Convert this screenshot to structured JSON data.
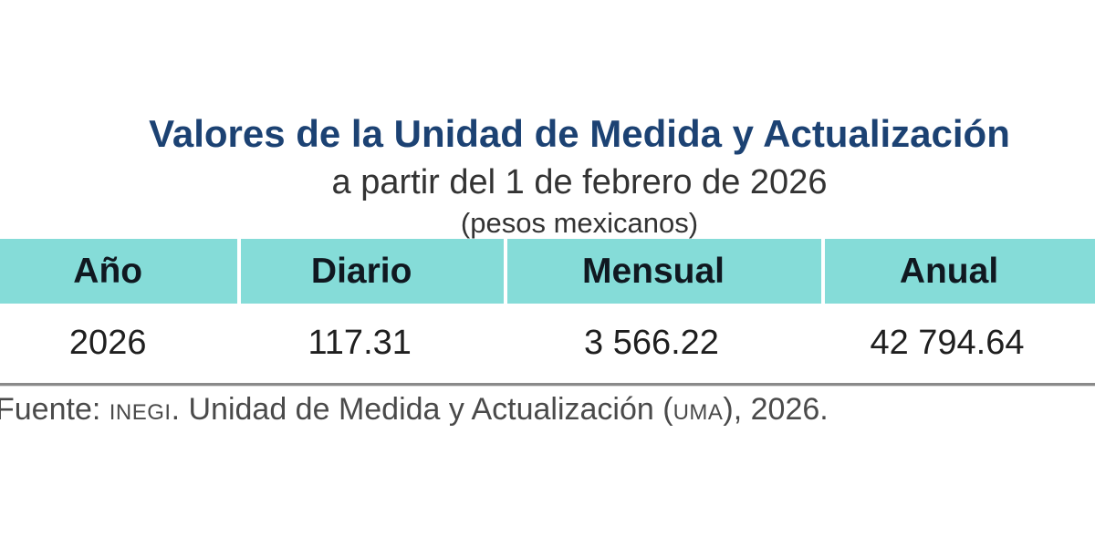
{
  "heading": {
    "title": "Valores de la Unidad de Medida y Actualización",
    "subtitle": "a partir del 1 de febrero de 2026",
    "unit_note": "(pesos mexicanos)"
  },
  "table": {
    "headers": [
      "Año",
      "Diario",
      "Mensual",
      "Anual"
    ],
    "rows": [
      [
        "2026",
        "117.31",
        "3 566.22",
        "42 794.64"
      ]
    ]
  },
  "source": {
    "prefix": "Fuente: ",
    "org": "INEGI",
    "middle": ". Unidad de Medida y Actualización (",
    "acronym": "UMA",
    "suffix": "), 2026."
  },
  "colors": {
    "title_text": "#1c4273",
    "subtitle_text": "#333333",
    "header_bg": "#85dcd8",
    "header_text": "#101820",
    "body_text": "#1f1f1f",
    "divider": "#8a8a8a",
    "source_text": "#4a4a4a"
  },
  "chart_data": {
    "type": "table",
    "title": "Valores de la Unidad de Medida y Actualización",
    "subtitle": "a partir del 1 de febrero de 2026",
    "units": "pesos mexicanos",
    "columns": [
      "Año",
      "Diario",
      "Mensual",
      "Anual"
    ],
    "rows": [
      [
        "2026",
        "117.31",
        "3 566.22",
        "42 794.64"
      ]
    ],
    "values_numeric": [
      {
        "año": 2026,
        "diario": 117.31,
        "mensual": 3566.22,
        "anual": 42794.64
      }
    ],
    "source": "Fuente: INEGI. Unidad de Medida y Actualización (UMA), 2026."
  }
}
